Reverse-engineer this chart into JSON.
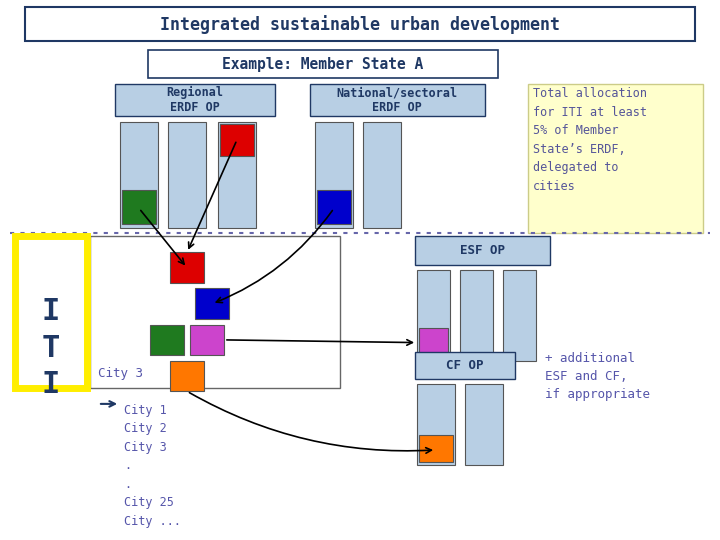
{
  "title": "Integrated sustainable urban development",
  "subtitle": "Example: Member State A",
  "title_color": "#1f3864",
  "bar_light_blue": "#b8cfe4",
  "bar_green": "#1f7a1f",
  "bar_red": "#dd0000",
  "bar_blue": "#0000cc",
  "bar_magenta": "#cc44cc",
  "bar_orange": "#ff7700",
  "note_bg": "#ffffcc",
  "note_text": "Total allocation\nfor ITI at least\n5% of Member\nState’s ERDF,\ndelegated to\ncities",
  "additional_text": "+ additional\nESF and CF,\nif appropriate",
  "city_list": "City 1\nCity 2\nCity 3\n.\n.\nCity 25\nCity ...",
  "regional_label": "Regional\nERDF OP",
  "national_label": "National/sectoral\nERDF OP",
  "esf_label": "ESF OP",
  "cf_label": "CF OP",
  "city3_label": "City 3"
}
